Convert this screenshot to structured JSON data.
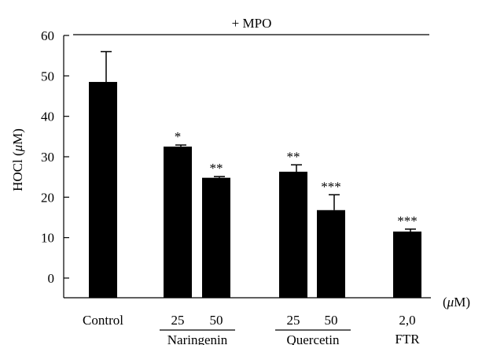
{
  "chart_data": {
    "type": "bar",
    "title": "",
    "header_annotation": "+ MPO",
    "ylabel_parts": [
      "HOCl (",
      "μ",
      "M)"
    ],
    "xunit_parts": [
      "(",
      "μ",
      "M)"
    ],
    "ylim": [
      0,
      60
    ],
    "yticks": [
      "0",
      "10",
      "20",
      "30",
      "40",
      "50",
      "60"
    ],
    "grid": false,
    "bars": [
      {
        "label": "Control",
        "value": 48.5,
        "error": 7.5,
        "sig": ""
      },
      {
        "label": "25",
        "value": 32.5,
        "error": 0.4,
        "sig": "*"
      },
      {
        "label": "50",
        "value": 24.8,
        "error": 0.3,
        "sig": "**"
      },
      {
        "label": "25",
        "value": 26.3,
        "error": 1.7,
        "sig": "**"
      },
      {
        "label": "50",
        "value": 16.8,
        "error": 3.8,
        "sig": "***"
      },
      {
        "label": "2,0",
        "value": 11.5,
        "error": 0.6,
        "sig": "***"
      }
    ],
    "groups": [
      {
        "name": "Naringenin"
      },
      {
        "name": "Quercetin"
      },
      {
        "name": "FTR"
      }
    ],
    "colors": {
      "bar": "#000000",
      "axis": "#000000"
    }
  }
}
